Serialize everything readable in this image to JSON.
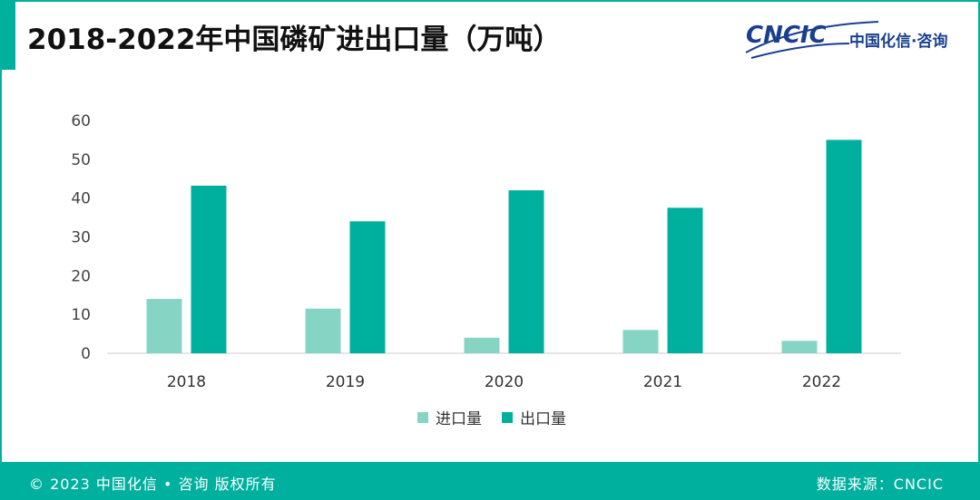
{
  "title": "2018-2022年中国磷矿进出口量（万吨）",
  "logo": {
    "text": "CNCIC",
    "cn": "中国化信·咨询"
  },
  "colors": {
    "accent": "#00b09f",
    "import": "#86d5c4",
    "export": "#00b09f"
  },
  "chart_data": {
    "type": "bar",
    "title": "2018-2022年中国磷矿进出口量（万吨）",
    "categories": [
      "2018",
      "2019",
      "2020",
      "2021",
      "2022"
    ],
    "series": [
      {
        "name": "进口量",
        "values": [
          14,
          11.5,
          4,
          6,
          3.2
        ]
      },
      {
        "name": "出口量",
        "values": [
          43.2,
          34,
          42,
          37.5,
          55
        ]
      }
    ],
    "ylim": [
      0,
      60
    ],
    "yticks": [
      "0",
      "10",
      "20",
      "30",
      "40",
      "50",
      "60"
    ],
    "xlabel": "",
    "ylabel": "",
    "legend": "bottom-center"
  },
  "footer": {
    "left": "© 2023 中国化信 • 咨询  版权所有",
    "right": "数据来源：CNCIC"
  }
}
